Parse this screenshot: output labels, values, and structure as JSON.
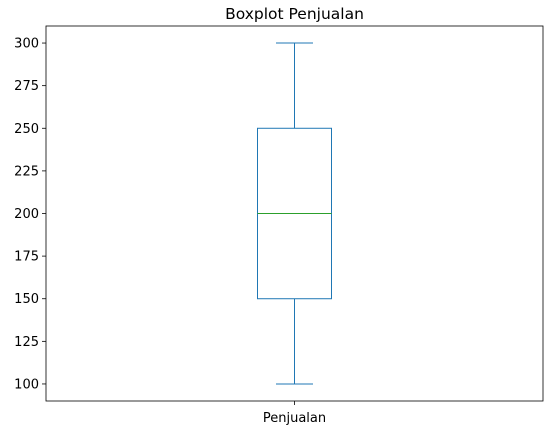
{
  "chart_data": {
    "type": "boxplot",
    "title": "Boxplot Penjualan",
    "xlabel": "",
    "ylabel": "",
    "categories": [
      "Penjualan"
    ],
    "series": [
      {
        "stats": {
          "whislo": 100,
          "q1": 150,
          "median": 200,
          "q3": 250,
          "whishi": 300
        }
      }
    ],
    "ylim": [
      90,
      310
    ],
    "yticks": [
      100,
      125,
      150,
      175,
      200,
      225,
      250,
      275,
      300
    ],
    "grid": false,
    "colors": {
      "box": "#1f77b4",
      "median": "#2ca02c",
      "whisker": "#1f77b4",
      "axis": "#000000"
    }
  }
}
